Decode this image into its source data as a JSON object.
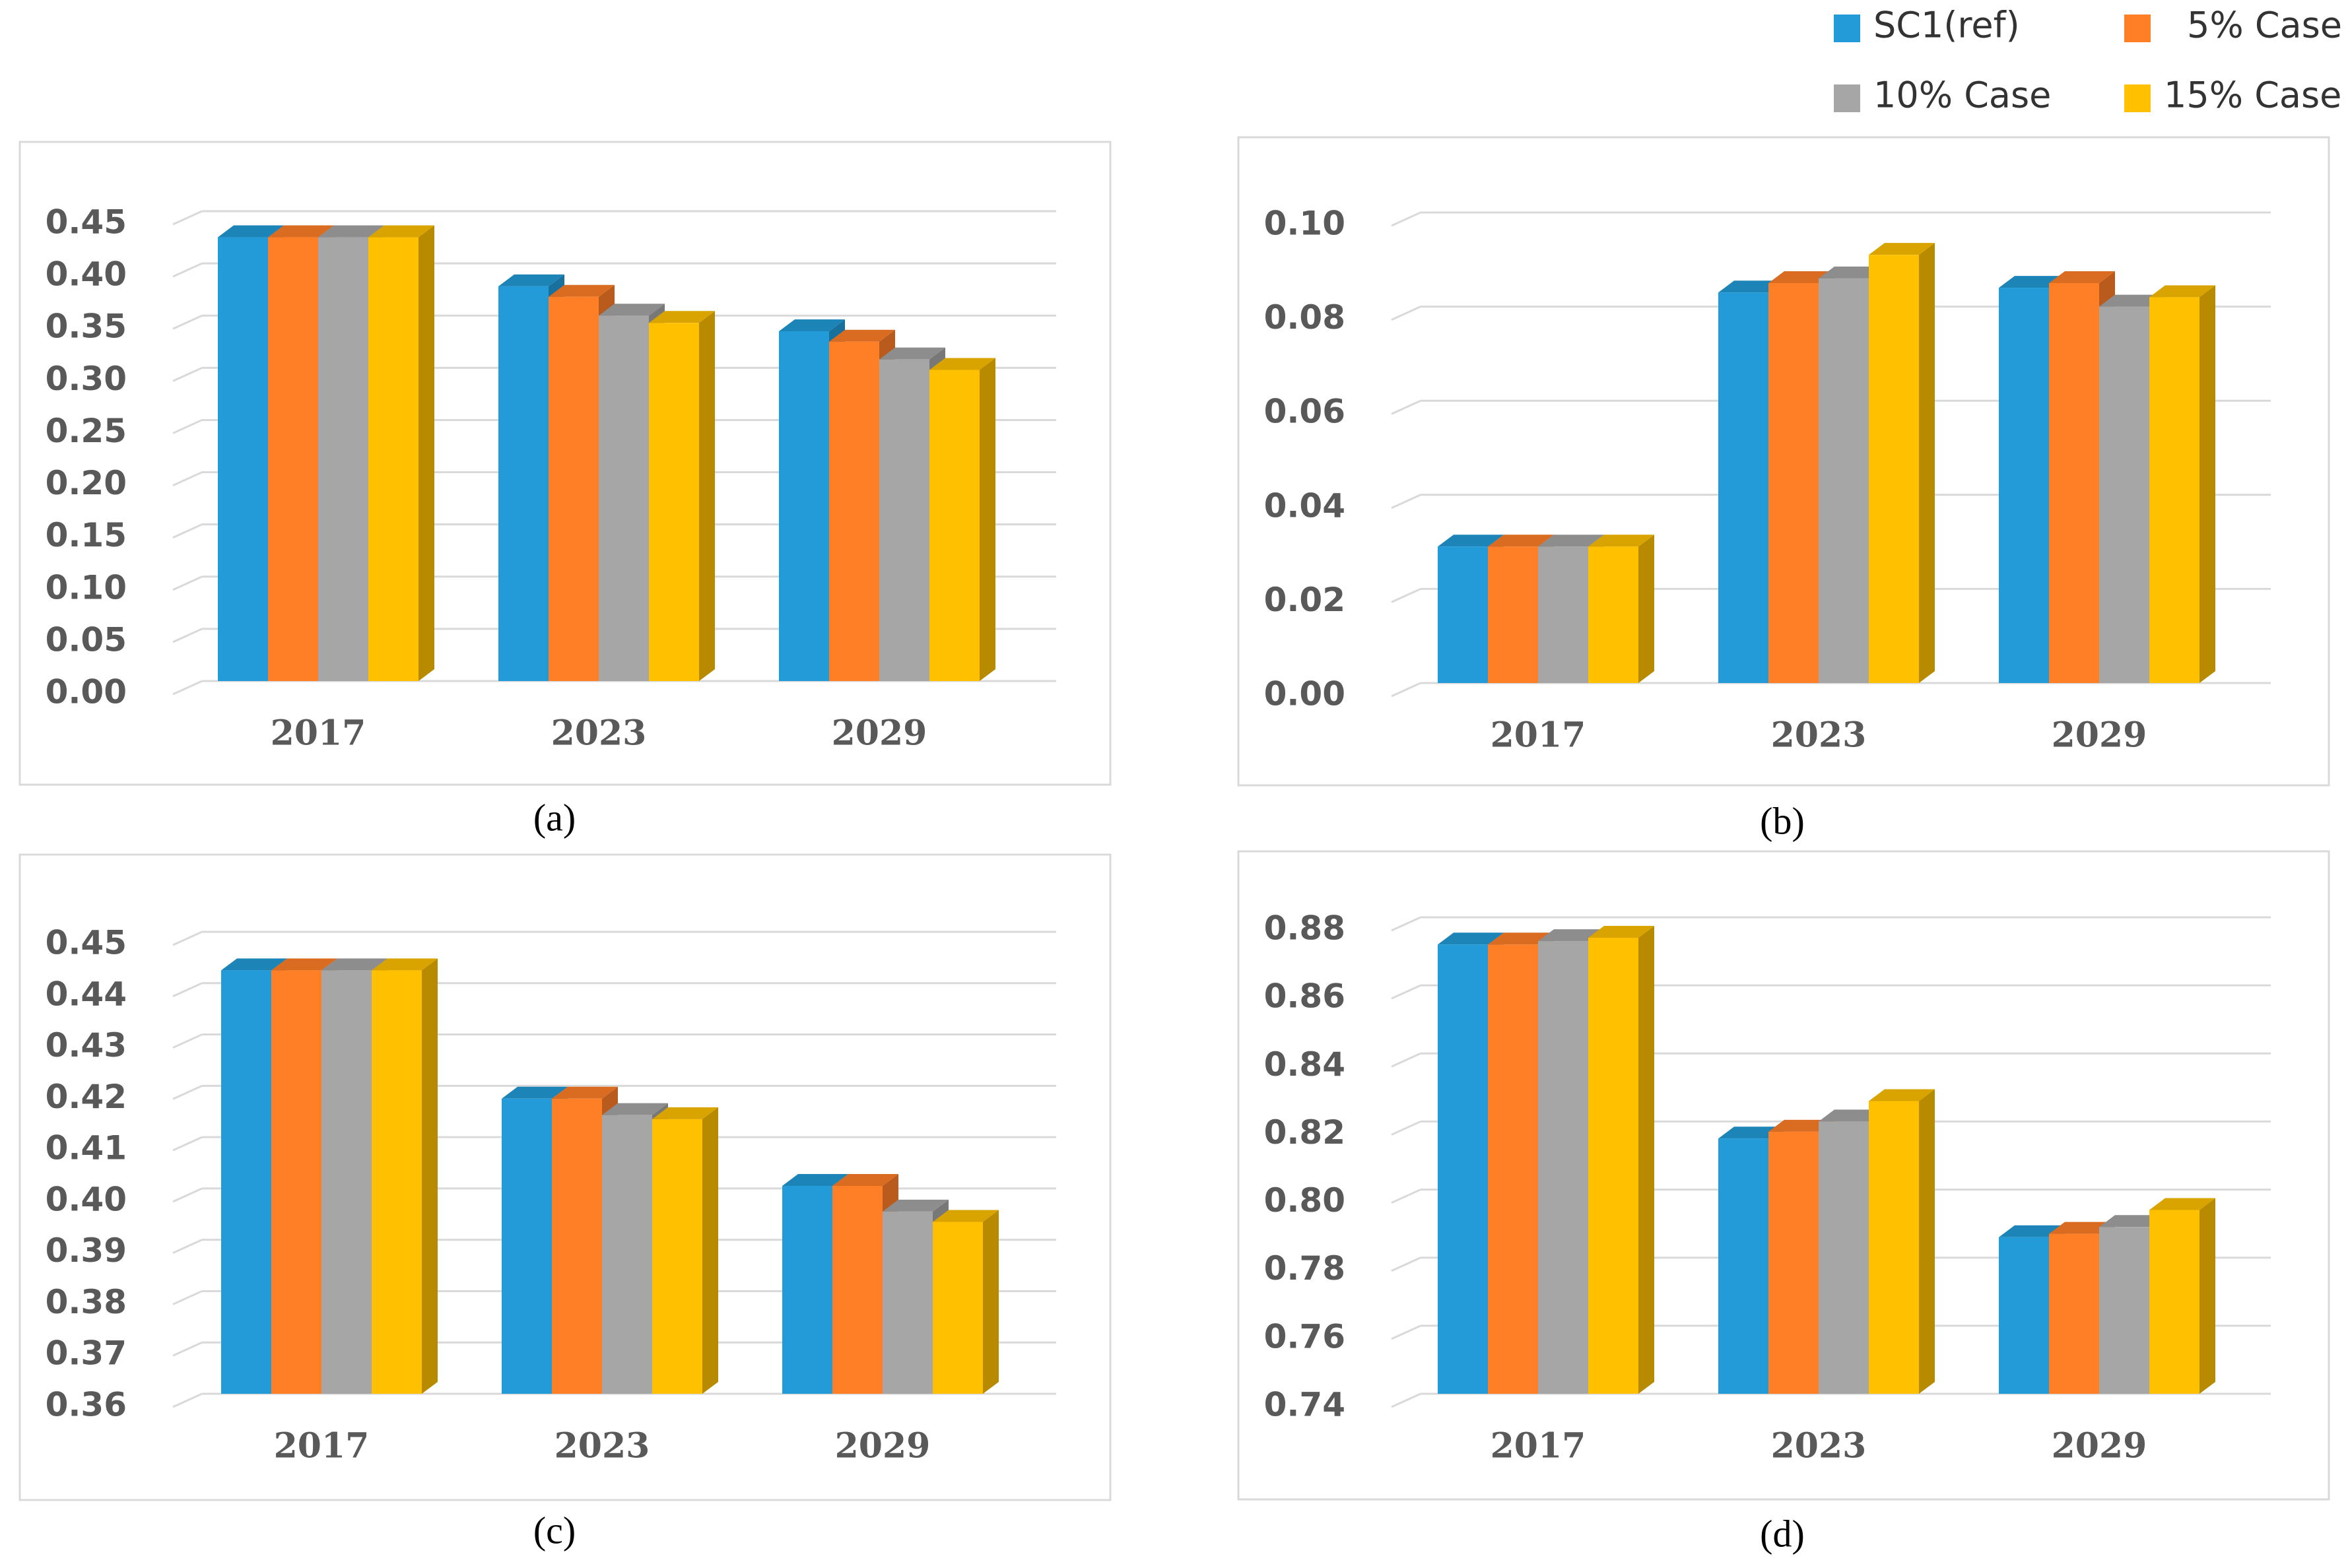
{
  "figure": {
    "legend": [
      {
        "name": "SC1(ref)",
        "color": "#229BD8"
      },
      {
        "name": "5% Case",
        "color": "#FF7F27"
      },
      {
        "name": "10% Case",
        "color": "#A6A6A6"
      },
      {
        "name": "15% Case",
        "color": "#FFC000"
      }
    ]
  },
  "chart_data": [
    {
      "type": "bar",
      "title": "",
      "caption": "(a)",
      "categories": [
        "2017",
        "2023",
        "2029"
      ],
      "series": [
        {
          "name": "SC1(ref)",
          "values": [
            0.425,
            0.378,
            0.335
          ]
        },
        {
          "name": "5% Case",
          "values": [
            0.425,
            0.368,
            0.325
          ]
        },
        {
          "name": "10% Case",
          "values": [
            0.425,
            0.35,
            0.308
          ]
        },
        {
          "name": "15% Case",
          "values": [
            0.425,
            0.343,
            0.298
          ]
        }
      ],
      "ylim": [
        0,
        0.45
      ],
      "yticks": [
        "0.00",
        "0.05",
        "0.10",
        "0.15",
        "0.20",
        "0.25",
        "0.30",
        "0.35",
        "0.40",
        "0.45"
      ],
      "xlabel": "",
      "ylabel": "",
      "grid": true
    },
    {
      "type": "bar",
      "title": "",
      "caption": "(b)",
      "categories": [
        "2017",
        "2023",
        "2029"
      ],
      "series": [
        {
          "name": "SC1(ref)",
          "values": [
            0.029,
            0.083,
            0.084
          ]
        },
        {
          "name": "5% Case",
          "values": [
            0.029,
            0.085,
            0.085
          ]
        },
        {
          "name": "10% Case",
          "values": [
            0.029,
            0.086,
            0.08
          ]
        },
        {
          "name": "15% Case",
          "values": [
            0.029,
            0.091,
            0.082
          ]
        }
      ],
      "ylim": [
        0,
        0.1
      ],
      "yticks": [
        "0.00",
        "0.02",
        "0.04",
        "0.06",
        "0.08",
        "0.10"
      ],
      "xlabel": "",
      "ylabel": "",
      "grid": true
    },
    {
      "type": "bar",
      "title": "",
      "caption": "(c)",
      "categories": [
        "2017",
        "2023",
        "2029"
      ],
      "series": [
        {
          "name": "SC1(ref)",
          "values": [
            0.4425,
            0.4175,
            0.4005
          ]
        },
        {
          "name": "5% Case",
          "values": [
            0.4425,
            0.4175,
            0.4005
          ]
        },
        {
          "name": "10% Case",
          "values": [
            0.4425,
            0.4143,
            0.3955
          ]
        },
        {
          "name": "15% Case",
          "values": [
            0.4425,
            0.4135,
            0.3935
          ]
        }
      ],
      "ylim": [
        0.36,
        0.45
      ],
      "yticks": [
        "0.36",
        "0.37",
        "0.38",
        "0.39",
        "0.40",
        "0.41",
        "0.42",
        "0.43",
        "0.44",
        "0.45"
      ],
      "xlabel": "",
      "ylabel": "",
      "grid": true
    },
    {
      "type": "bar",
      "title": "",
      "caption": "(d)",
      "categories": [
        "2017",
        "2023",
        "2029"
      ],
      "series": [
        {
          "name": "SC1(ref)",
          "values": [
            0.872,
            0.815,
            0.786
          ]
        },
        {
          "name": "5% Case",
          "values": [
            0.872,
            0.817,
            0.787
          ]
        },
        {
          "name": "10% Case",
          "values": [
            0.873,
            0.82,
            0.789
          ]
        },
        {
          "name": "15% Case",
          "values": [
            0.874,
            0.826,
            0.794
          ]
        }
      ],
      "ylim": [
        0.74,
        0.88
      ],
      "yticks": [
        "0.74",
        "0.76",
        "0.78",
        "0.80",
        "0.82",
        "0.84",
        "0.86",
        "0.88"
      ],
      "xlabel": "",
      "ylabel": "",
      "grid": true
    }
  ]
}
